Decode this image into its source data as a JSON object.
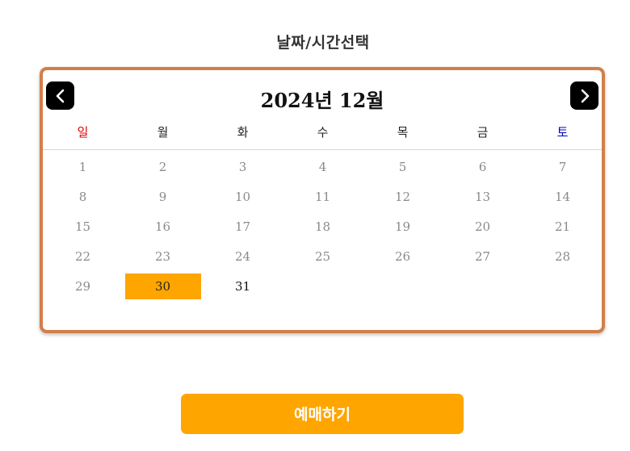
{
  "page_title": "날짜/시간선택",
  "calendar": {
    "month_title": "2024년 12월",
    "prev_icon": "chevron-left-icon",
    "next_icon": "chevron-right-icon",
    "weekdays": [
      "일",
      "월",
      "화",
      "수",
      "목",
      "금",
      "토"
    ],
    "days": [
      "1",
      "2",
      "3",
      "4",
      "5",
      "6",
      "7",
      "8",
      "9",
      "10",
      "11",
      "12",
      "13",
      "14",
      "15",
      "16",
      "17",
      "18",
      "19",
      "20",
      "21",
      "22",
      "23",
      "24",
      "25",
      "26",
      "27",
      "28",
      "29",
      "30",
      "31"
    ],
    "selected_day": "30",
    "selectable_days": [
      "30",
      "31"
    ]
  },
  "book_button_label": "예매하기",
  "colors": {
    "accent": "#ffa500",
    "border": "#d27f4a",
    "sunday": "#e00000",
    "saturday": "#0000c8",
    "past_day": "#8a8a8a"
  }
}
